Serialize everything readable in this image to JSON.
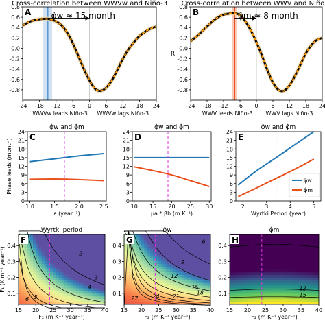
{
  "top_titles": {
    "A": "Cross-correlation between WWV",
    "A_sub": "w",
    "A_tail": " and Niño-3",
    "B": "Cross-correlation between WWV and Niño-3"
  },
  "bottom_titles": {
    "F": "Wyrtki period",
    "G": "φ̂",
    "G_sub": "w",
    "H": "φ̂",
    "H_sub": "m"
  },
  "legend": {
    "w_label": "φ̂w",
    "m_label": "φ̂m"
  },
  "colors": {
    "black": "#000000",
    "orange": "#ff9900",
    "blue": "#1f77b4",
    "red_orange": "#e8501c",
    "steelblue": "#5b9bd5",
    "shade_blue": "#c6dbef",
    "darkred": "#e8501c",
    "magenta": "#dd33dd",
    "gray_line": "#aaaaaa"
  },
  "chart_data": [
    {
      "id": "A",
      "type": "line",
      "panel_label": "A",
      "title": "Cross-correlation between WWVw and Niño-3",
      "annotation": "φ̂w ≈ 15 month",
      "xlabel_left": "WWVw leads Niño-3",
      "xlabel_right": "WWVw lags Niño-3",
      "xlim": [
        -24,
        24
      ],
      "ylim": [
        -1.0,
        0.8
      ],
      "xticks": [
        -24,
        -18,
        -12,
        -6,
        0,
        6,
        12,
        18,
        24
      ],
      "yticks": [
        -0.8,
        -0.6,
        -0.4,
        -0.2,
        0.0,
        0.2,
        0.4,
        0.6,
        0.8
      ],
      "vline": -15,
      "series": [
        {
          "x": [
            -24,
            -22,
            -20,
            -18,
            -16,
            -15,
            -14,
            -12,
            -10,
            -8,
            -6,
            -4,
            -2,
            0,
            2,
            4,
            6,
            8,
            10,
            12,
            14,
            16,
            18,
            20,
            22,
            24
          ],
          "values": [
            0.44,
            0.5,
            0.54,
            0.56,
            0.57,
            0.57,
            0.56,
            0.52,
            0.44,
            0.3,
            0.1,
            -0.15,
            -0.4,
            -0.62,
            -0.78,
            -0.82,
            -0.76,
            -0.62,
            -0.42,
            -0.2,
            -0.02,
            0.12,
            0.24,
            0.32,
            0.38,
            0.42
          ]
        }
      ]
    },
    {
      "id": "B",
      "type": "line",
      "panel_label": "B",
      "title": "Cross-correlation between WWV and Niño-3",
      "annotation": "φ̂m ≈ 8 month",
      "ylabel": "R",
      "xlabel_left": "WWV leads Niño-3",
      "xlabel_right": "WWV lags Niño-3",
      "xlim": [
        -24,
        24
      ],
      "ylim": [
        -1.0,
        0.8
      ],
      "xticks": [
        -24,
        -18,
        -12,
        -6,
        0,
        6,
        12,
        18,
        24
      ],
      "yticks": [
        -0.8,
        -0.6,
        -0.4,
        -0.2,
        0.0,
        0.2,
        0.4,
        0.6,
        0.8
      ],
      "vline": -8,
      "series": [
        {
          "x": [
            -24,
            -22,
            -20,
            -18,
            -16,
            -14,
            -12,
            -10,
            -8,
            -6,
            -4,
            -2,
            0,
            2,
            4,
            6,
            8,
            10,
            12,
            14,
            16,
            18,
            20,
            22,
            24
          ],
          "values": [
            0.14,
            0.22,
            0.32,
            0.42,
            0.52,
            0.6,
            0.65,
            0.67,
            0.68,
            0.64,
            0.52,
            0.34,
            0.12,
            -0.14,
            -0.42,
            -0.66,
            -0.8,
            -0.82,
            -0.72,
            -0.54,
            -0.32,
            -0.1,
            0.06,
            0.16,
            0.2
          ]
        }
      ]
    },
    {
      "id": "C",
      "type": "line",
      "panel_label": "C",
      "title": "φ̂w and φ̂m",
      "xlabel": "ε (year⁻¹)",
      "ylabel": "Phase leads (month)",
      "xlim": [
        0.95,
        2.55
      ],
      "ylim": [
        0,
        24
      ],
      "xticks": [
        1.0,
        1.5,
        2.0,
        2.5
      ],
      "yticks": [
        0,
        3,
        6,
        9,
        12,
        15,
        18,
        21,
        24
      ],
      "vline": 1.7,
      "series": [
        {
          "x": [
            1.0,
            1.5,
            2.0,
            2.5
          ],
          "values": [
            13.6,
            14.6,
            15.6,
            16.4
          ],
          "color": "blue"
        },
        {
          "x": [
            1.0,
            1.5,
            2.0,
            2.5
          ],
          "values": [
            7.5,
            7.6,
            7.4,
            7.0
          ],
          "color": "red_orange"
        }
      ]
    },
    {
      "id": "D",
      "type": "line",
      "panel_label": "D",
      "title": "φ̂w and φ̂m",
      "xlabel": "μa * βh (m K⁻¹)",
      "xlim": [
        9.5,
        30.5
      ],
      "ylim": [
        0,
        24
      ],
      "xticks": [
        10,
        15,
        20,
        25,
        30
      ],
      "yticks": [
        0,
        3,
        6,
        9,
        12,
        15,
        18,
        21,
        24
      ],
      "vline": 19,
      "series": [
        {
          "x": [
            10,
            15,
            20,
            25,
            30
          ],
          "values": [
            15,
            15,
            15,
            15,
            15
          ],
          "color": "blue"
        },
        {
          "x": [
            10,
            15,
            20,
            25,
            30
          ],
          "values": [
            11.8,
            10.5,
            9.0,
            7.0,
            5.0
          ],
          "color": "red_orange"
        }
      ]
    },
    {
      "id": "E",
      "type": "line",
      "panel_label": "E",
      "title": "φ̂w and φ̂m",
      "xlabel": "Wyrtki Period (year)",
      "xlim": [
        1.7,
        5.3
      ],
      "ylim": [
        0,
        24
      ],
      "xticks": [
        2,
        3,
        4,
        5
      ],
      "yticks": [
        0,
        3,
        6,
        9,
        12,
        15,
        18,
        21,
        24
      ],
      "vline": 3.4,
      "legend": [
        "φ̂w",
        "φ̂m"
      ],
      "series": [
        {
          "name": "φ̂w",
          "x": [
            1.8,
            2.5,
            3.4,
            4.2,
            5.0
          ],
          "values": [
            5.5,
            10,
            15,
            19.5,
            24
          ],
          "color": "blue"
        },
        {
          "name": "φ̂m",
          "x": [
            1.8,
            2.5,
            3.4,
            4.2,
            5.0
          ],
          "values": [
            1.5,
            4.2,
            7.8,
            11,
            14.5
          ],
          "color": "red_orange"
        }
      ]
    },
    {
      "id": "F",
      "type": "heatmap",
      "panel_label": "F",
      "title": "Wyrtki period",
      "xlabel": "F₂ (m K⁻¹ year⁻¹)",
      "ylabel": "F₁ (K m⁻¹ year⁻¹)",
      "xlim": [
        15,
        40
      ],
      "ylim": [
        0.03,
        0.47
      ],
      "xticks": [
        15,
        20,
        25,
        30,
        35,
        40
      ],
      "yticks": [
        0.1,
        0.2,
        0.3,
        0.4
      ],
      "vline": 24,
      "hline": 0.14,
      "contour_labels": [
        "2",
        "3",
        "4",
        "5",
        "6"
      ]
    },
    {
      "id": "G",
      "type": "heatmap",
      "panel_label": "G",
      "title": "φ̂w",
      "xlabel": "F₂ (m K⁻¹ year⁻¹)",
      "xlim": [
        15,
        40
      ],
      "ylim": [
        0.03,
        0.47
      ],
      "xticks": [
        15,
        20,
        25,
        30,
        35,
        40
      ],
      "yticks": [
        0.1,
        0.2,
        0.3,
        0.4
      ],
      "vline": 24,
      "hline": 0.14,
      "contour_labels": [
        "6",
        "9",
        "12",
        "15",
        "18",
        "21",
        "24",
        "27"
      ]
    },
    {
      "id": "H",
      "type": "heatmap",
      "panel_label": "H",
      "title": "φ̂m",
      "xlabel": "F₂ (m K⁻¹ year⁻¹)",
      "xlim": [
        15,
        40
      ],
      "ylim": [
        0.03,
        0.47
      ],
      "xticks": [
        15,
        20,
        25,
        30,
        35,
        40
      ],
      "yticks": [
        0.1,
        0.2,
        0.3,
        0.4
      ],
      "vline": 24,
      "hline": 0.14,
      "contour_labels": [
        "12",
        "15"
      ]
    }
  ]
}
